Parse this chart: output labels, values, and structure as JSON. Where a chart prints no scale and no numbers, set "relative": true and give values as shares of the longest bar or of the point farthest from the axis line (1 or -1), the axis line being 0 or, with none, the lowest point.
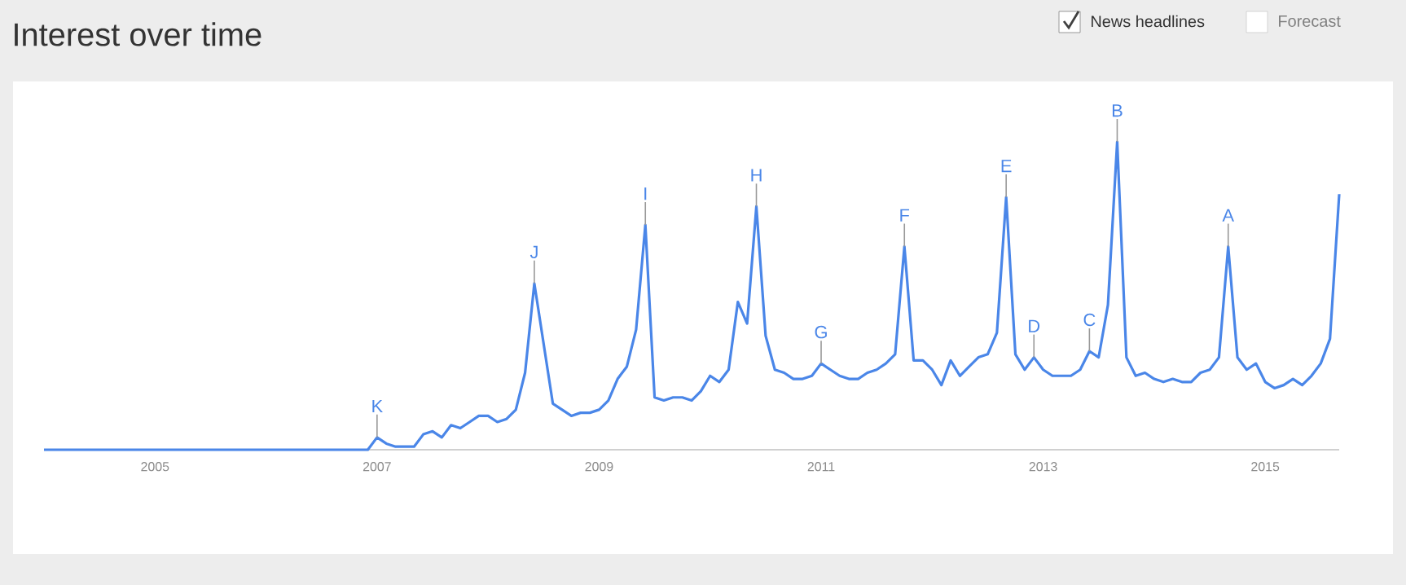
{
  "chart_data": {
    "type": "line",
    "title": "Interest over time",
    "relative": true,
    "xlim": [
      "2004-01",
      "2015-09"
    ],
    "xticks": [
      "2005",
      "2007",
      "2009",
      "2011",
      "2013",
      "2015"
    ],
    "series": [
      {
        "color": "#4a86e8",
        "x": [
          "2004-01",
          "2006-12",
          "2007-01",
          "2007-02",
          "2007-03",
          "2007-05",
          "2007-06",
          "2007-07",
          "2007-08",
          "2007-09",
          "2007-10",
          "2007-11",
          "2007-12",
          "2008-01",
          "2008-02",
          "2008-03",
          "2008-04",
          "2008-05",
          "2008-06",
          "2008-08",
          "2008-09",
          "2008-10",
          "2008-11",
          "2008-12",
          "2009-01",
          "2009-02",
          "2009-03",
          "2009-04",
          "2009-05",
          "2009-06",
          "2009-07",
          "2009-08",
          "2009-09",
          "2009-10",
          "2009-11",
          "2009-12",
          "2010-01",
          "2010-02",
          "2010-03",
          "2010-04",
          "2010-05",
          "2010-06",
          "2010-07",
          "2010-08",
          "2010-09",
          "2010-10",
          "2010-11",
          "2010-12",
          "2011-01",
          "2011-02",
          "2011-03",
          "2011-04",
          "2011-05",
          "2011-06",
          "2011-07",
          "2011-08",
          "2011-09",
          "2011-10",
          "2011-11",
          "2011-12",
          "2012-01",
          "2012-02",
          "2012-03",
          "2012-04",
          "2012-05",
          "2012-06",
          "2012-07",
          "2012-08",
          "2012-09",
          "2012-10",
          "2012-11",
          "2012-12",
          "2013-01",
          "2013-02",
          "2013-03",
          "2013-04",
          "2013-05",
          "2013-06",
          "2013-07",
          "2013-08",
          "2013-09",
          "2013-10",
          "2013-11",
          "2013-12",
          "2014-01",
          "2014-02",
          "2014-03",
          "2014-04",
          "2014-05",
          "2014-06",
          "2014-07",
          "2014-08",
          "2014-09",
          "2014-10",
          "2014-11",
          "2014-12",
          "2015-01",
          "2015-02",
          "2015-03",
          "2015-04",
          "2015-05",
          "2015-06",
          "2015-07",
          "2015-08",
          "2015-09"
        ],
        "values": [
          0,
          0,
          0.04,
          0.02,
          0.01,
          0.01,
          0.05,
          0.06,
          0.04,
          0.08,
          0.07,
          0.09,
          0.11,
          0.11,
          0.09,
          0.1,
          0.13,
          0.25,
          0.54,
          0.15,
          0.13,
          0.11,
          0.12,
          0.12,
          0.13,
          0.16,
          0.23,
          0.27,
          0.39,
          0.73,
          0.17,
          0.16,
          0.17,
          0.17,
          0.16,
          0.19,
          0.24,
          0.22,
          0.26,
          0.48,
          0.41,
          0.79,
          0.37,
          0.26,
          0.25,
          0.23,
          0.23,
          0.24,
          0.28,
          0.26,
          0.24,
          0.23,
          0.23,
          0.25,
          0.26,
          0.28,
          0.31,
          0.66,
          0.29,
          0.29,
          0.26,
          0.21,
          0.29,
          0.24,
          0.27,
          0.3,
          0.31,
          0.38,
          0.82,
          0.31,
          0.26,
          0.3,
          0.26,
          0.24,
          0.24,
          0.24,
          0.26,
          0.32,
          0.3,
          0.47,
          1.0,
          0.3,
          0.24,
          0.25,
          0.23,
          0.22,
          0.23,
          0.22,
          0.22,
          0.25,
          0.26,
          0.3,
          0.66,
          0.3,
          0.26,
          0.28,
          0.22,
          0.2,
          0.21,
          0.23,
          0.21,
          0.24,
          0.28,
          0.36,
          0.83
        ]
      }
    ],
    "annotations": [
      {
        "text": "K",
        "x": "2007-01",
        "y": 0.04
      },
      {
        "text": "J",
        "x": "2008-06",
        "y": 0.54
      },
      {
        "text": "I",
        "x": "2009-06",
        "y": 0.73
      },
      {
        "text": "H",
        "x": "2010-06",
        "y": 0.79
      },
      {
        "text": "G",
        "x": "2011-01",
        "y": 0.28
      },
      {
        "text": "F",
        "x": "2011-10",
        "y": 0.66
      },
      {
        "text": "E",
        "x": "2012-09",
        "y": 0.82
      },
      {
        "text": "D",
        "x": "2012-12",
        "y": 0.3
      },
      {
        "text": "C",
        "x": "2013-06",
        "y": 0.32
      },
      {
        "text": "B",
        "x": "2013-09",
        "y": 1.0
      },
      {
        "text": "A",
        "x": "2014-09",
        "y": 0.66
      },
      "News headlines",
      "Forecast"
    ]
  }
}
